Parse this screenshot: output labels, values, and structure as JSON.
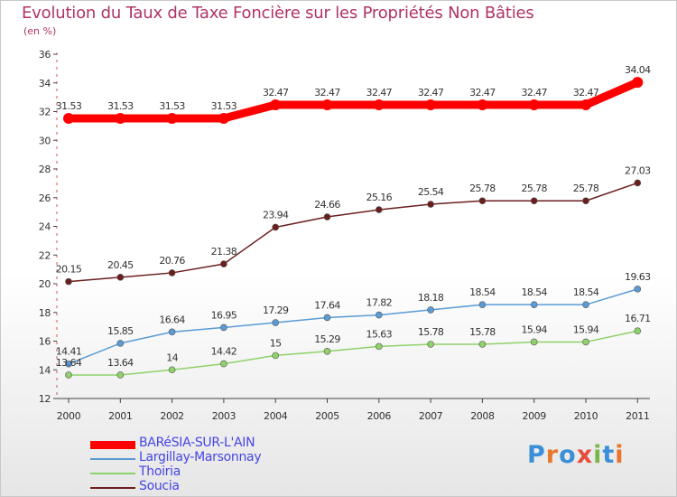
{
  "header": {
    "title": "Evolution du Taux de Taxe Foncière sur les Propriétés Non Bâties",
    "subtitle": "(en %)"
  },
  "logo": {
    "text": "Proxiti",
    "colors": [
      "#3b8fd8",
      "#e8762c",
      "#3b8fd8",
      "#e84c3c",
      "#7ab648",
      "#3b8fd8",
      "#e8762c"
    ]
  },
  "chart_data": {
    "type": "line",
    "title": "Evolution du Taux de Taxe Foncière sur les Propriétés Non Bâties",
    "ylabel": "(en %)",
    "xlabel": "",
    "ylim": [
      12,
      36
    ],
    "yticks": [
      12,
      14,
      16,
      18,
      20,
      22,
      24,
      26,
      28,
      30,
      32,
      34,
      36
    ],
    "categories": [
      "2000",
      "2001",
      "2002",
      "2003",
      "2004",
      "2005",
      "2006",
      "2007",
      "2008",
      "2009",
      "2010",
      "2011"
    ],
    "series": [
      {
        "name": "BARéSIA-SUR-L'AIN",
        "color": "#ff0000",
        "values": [
          31.53,
          31.53,
          31.53,
          31.53,
          32.47,
          32.47,
          32.47,
          32.47,
          32.47,
          32.47,
          32.47,
          34.04
        ],
        "labels": [
          "31.53",
          "31.53",
          "31.53",
          "31.53",
          "32.47",
          "32.47",
          "32.47",
          "32.47",
          "32.47",
          "32.47",
          "32.47",
          "34.04"
        ]
      },
      {
        "name": "Largillay-Marsonnay",
        "color": "#5b9bd5",
        "values": [
          14.41,
          15.85,
          16.64,
          16.95,
          17.29,
          17.64,
          17.82,
          18.18,
          18.54,
          18.54,
          18.54,
          19.63
        ],
        "labels": [
          "14.41",
          "15.85",
          "16.64",
          "16.95",
          "17.29",
          "17.64",
          "17.82",
          "18.18",
          "18.54",
          "18.54",
          "18.54",
          "19.63"
        ]
      },
      {
        "name": "Thoiria",
        "color": "#8fd16a",
        "values": [
          13.64,
          13.64,
          14,
          14.42,
          15,
          15.29,
          15.63,
          15.78,
          15.78,
          15.94,
          15.94,
          16.71
        ],
        "labels": [
          "13.64",
          "13.64",
          "14",
          "14.42",
          "15",
          "15.29",
          "15.63",
          "15.78",
          "15.78",
          "15.94",
          "15.94",
          "16.71"
        ]
      },
      {
        "name": "Soucia",
        "color": "#6b1e1e",
        "values": [
          20.15,
          20.45,
          20.76,
          21.38,
          23.94,
          24.66,
          25.16,
          25.54,
          25.78,
          25.78,
          25.78,
          27.03
        ],
        "labels": [
          "20.15",
          "20.45",
          "20.76",
          "21.38",
          "23.94",
          "24.66",
          "25.16",
          "25.54",
          "25.78",
          "25.78",
          "25.78",
          "27.03"
        ]
      }
    ],
    "legend": [
      "BARéSIA-SUR-L'AIN",
      "Largillay-Marsonnay",
      "Thoiria",
      "Soucia"
    ],
    "grid": false,
    "legend_position": "bottom-left"
  }
}
